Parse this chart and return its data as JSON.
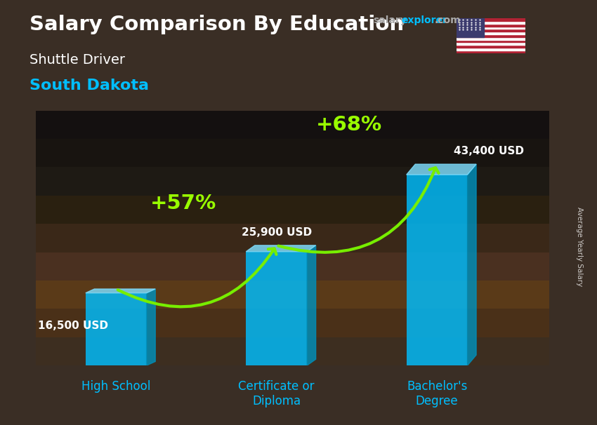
{
  "title_main": "Salary Comparison By Education",
  "subtitle1": "Shuttle Driver",
  "subtitle2": "South Dakota",
  "categories": [
    "High School",
    "Certificate or\nDiploma",
    "Bachelor's\nDegree"
  ],
  "values": [
    16500,
    25900,
    43400
  ],
  "labels": [
    "16,500 USD",
    "25,900 USD",
    "43,400 USD"
  ],
  "bar_color_face": "#00BFFF",
  "bar_color_top": "#7FDFFF",
  "bar_color_side": "#0090BB",
  "bar_alpha": 0.82,
  "bar_width": 0.38,
  "depth_x": 0.055,
  "depth_y_ratio": 0.055,
  "ylim": [
    0,
    58000
  ],
  "xlim": [
    -0.5,
    2.7
  ],
  "pct_labels": [
    "+57%",
    "+68%"
  ],
  "ylabel_rotated": "Average Yearly Salary",
  "bg_color_top": "#3a2e25",
  "bg_color_mid": "#5c3a1a",
  "bg_color_bot": "#1a1a1a",
  "title_color": "#ffffff",
  "subtitle1_color": "#ffffff",
  "subtitle2_color": "#00BFFF",
  "label_color": "#ffffff",
  "pct_color": "#99ff00",
  "category_color": "#00BFFF",
  "arrow_color": "#77ee00",
  "salaryexplorer_salary_color": "#aaaaaa",
  "salaryexplorer_explorer_color": "#00BFFF",
  "salaryexplorer_com_color": "#aaaaaa"
}
